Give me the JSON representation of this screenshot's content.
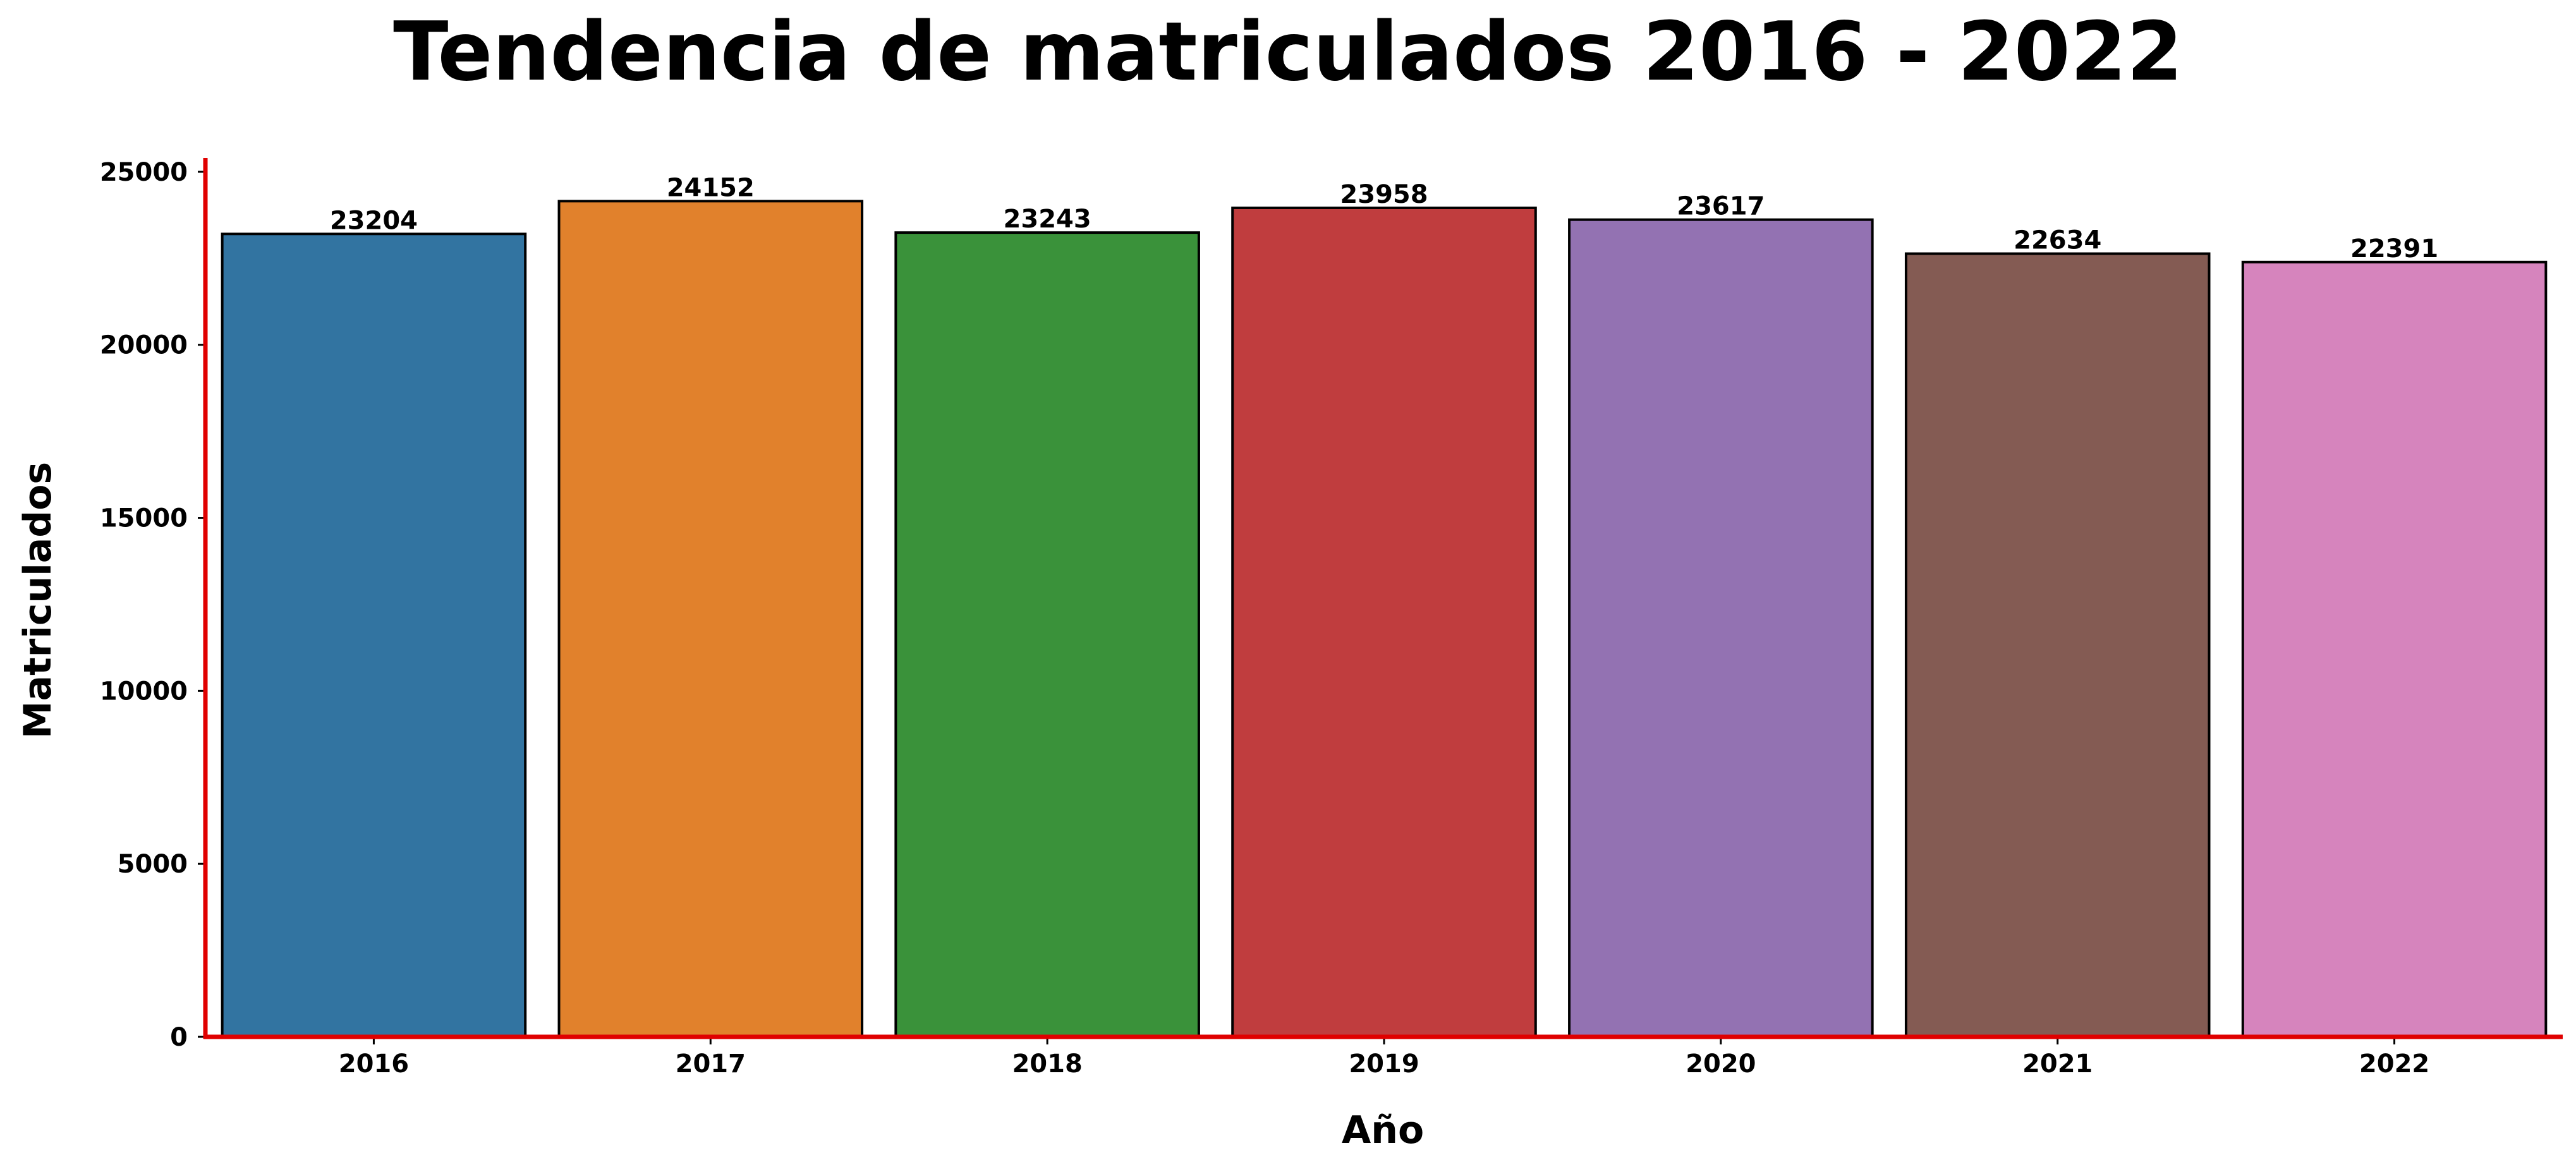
{
  "chart_data": {
    "type": "bar",
    "title": "Tendencia de matriculados 2016 - 2022",
    "xlabel": "Año",
    "ylabel": "Matriculados",
    "categories": [
      "2016",
      "2017",
      "2018",
      "2019",
      "2020",
      "2021",
      "2022"
    ],
    "values": [
      23204,
      24152,
      23243,
      23958,
      23617,
      22634,
      22391
    ],
    "data_labels": [
      "23204",
      "24152",
      "23243",
      "23958",
      "23617",
      "22634",
      "22391"
    ],
    "colors": [
      "#3274a1",
      "#e1812c",
      "#3a923a",
      "#c03d3e",
      "#9372b2",
      "#845b53",
      "#d684bd"
    ],
    "bar_edge_color": "#000000",
    "axis_color": "#e00000",
    "ylim": [
      0,
      25400
    ],
    "yticks": [
      0,
      5000,
      10000,
      15000,
      20000,
      25000
    ],
    "ytick_labels": [
      "0",
      "5000",
      "10000",
      "15000",
      "20000",
      "25000"
    ],
    "grid": false,
    "legend": "none"
  }
}
